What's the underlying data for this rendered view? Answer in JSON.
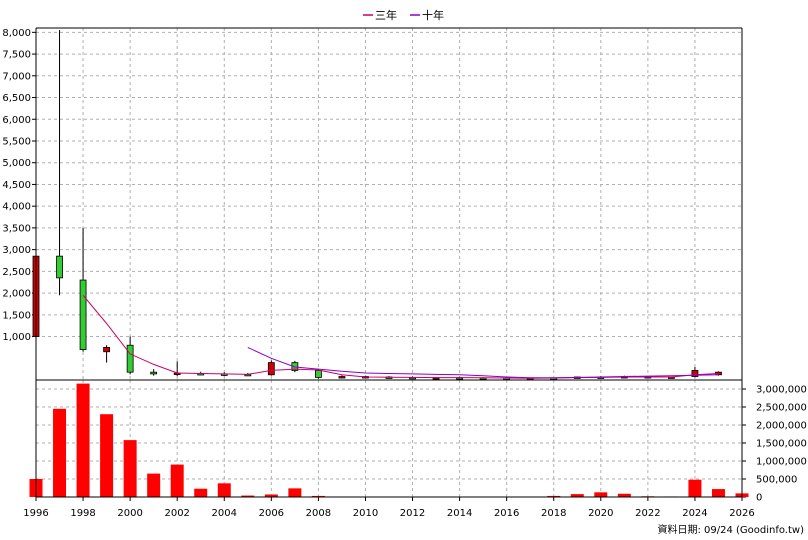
{
  "legend": [
    {
      "label": "三年",
      "color": "#cc0066"
    },
    {
      "label": "十年",
      "color": "#8800cc"
    }
  ],
  "footer": "資料日期: 09/24  (Goodinfo.tw)",
  "chart_data": [
    {
      "type": "candlestick",
      "title": "",
      "xlabel": "",
      "ylabel": "",
      "x_range": [
        1996,
        2026
      ],
      "x_ticks": [
        "1996",
        "1998",
        "2000",
        "2002",
        "2004",
        "2006",
        "2008",
        "2010",
        "2012",
        "2014",
        "2016",
        "2018",
        "2020",
        "2022",
        "2024",
        "2026"
      ],
      "y_ticks": [
        "1,000",
        "1,500",
        "2,000",
        "2,500",
        "3,000",
        "3,500",
        "4,000",
        "4,500",
        "5,000",
        "5,500",
        "6,000",
        "6,500",
        "7,000",
        "7,500",
        "8,000"
      ],
      "ylim": [
        0,
        8100
      ],
      "grid": true,
      "legend_position": "top-center",
      "up_color": "#cc0000",
      "down_color": "#33cc33",
      "candles": [
        {
          "year": 1996,
          "open": 1000,
          "high": 3050,
          "low": 800,
          "close": 2850
        },
        {
          "year": 1997,
          "open": 2850,
          "high": 8050,
          "low": 1950,
          "close": 2350
        },
        {
          "year": 1998,
          "open": 2300,
          "high": 3500,
          "low": 650,
          "close": 700
        },
        {
          "year": 1999,
          "open": 650,
          "high": 800,
          "low": 400,
          "close": 750
        },
        {
          "year": 2000,
          "open": 800,
          "high": 1000,
          "low": 130,
          "close": 180
        },
        {
          "year": 2001,
          "open": 180,
          "high": 250,
          "low": 100,
          "close": 140
        },
        {
          "year": 2002,
          "open": 140,
          "high": 430,
          "low": 90,
          "close": 160
        },
        {
          "year": 2003,
          "open": 150,
          "high": 190,
          "low": 110,
          "close": 140
        },
        {
          "year": 2004,
          "open": 140,
          "high": 180,
          "low": 90,
          "close": 130
        },
        {
          "year": 2005,
          "open": 130,
          "high": 160,
          "low": 90,
          "close": 120
        },
        {
          "year": 2006,
          "open": 120,
          "high": 450,
          "low": 100,
          "close": 400
        },
        {
          "year": 2007,
          "open": 400,
          "high": 440,
          "low": 180,
          "close": 220
        },
        {
          "year": 2008,
          "open": 220,
          "high": 260,
          "low": 30,
          "close": 60
        },
        {
          "year": 2009,
          "open": 60,
          "high": 110,
          "low": 40,
          "close": 80
        },
        {
          "year": 2010,
          "open": 80,
          "high": 100,
          "low": 60,
          "close": 70
        },
        {
          "year": 2011,
          "open": 70,
          "high": 90,
          "low": 50,
          "close": 60
        },
        {
          "year": 2012,
          "open": 60,
          "high": 80,
          "low": 40,
          "close": 50
        },
        {
          "year": 2013,
          "open": 50,
          "high": 70,
          "low": 40,
          "close": 55
        },
        {
          "year": 2014,
          "open": 55,
          "high": 75,
          "low": 40,
          "close": 50
        },
        {
          "year": 2015,
          "open": 50,
          "high": 65,
          "low": 35,
          "close": 45
        },
        {
          "year": 2016,
          "open": 45,
          "high": 60,
          "low": 30,
          "close": 40
        },
        {
          "year": 2017,
          "open": 40,
          "high": 55,
          "low": 30,
          "close": 45
        },
        {
          "year": 2018,
          "open": 45,
          "high": 60,
          "low": 30,
          "close": 40
        },
        {
          "year": 2019,
          "open": 40,
          "high": 80,
          "low": 35,
          "close": 70
        },
        {
          "year": 2020,
          "open": 70,
          "high": 90,
          "low": 40,
          "close": 60
        },
        {
          "year": 2021,
          "open": 60,
          "high": 100,
          "low": 50,
          "close": 80
        },
        {
          "year": 2022,
          "open": 80,
          "high": 90,
          "low": 50,
          "close": 60
        },
        {
          "year": 2023,
          "open": 60,
          "high": 80,
          "low": 50,
          "close": 70
        },
        {
          "year": 2024,
          "open": 80,
          "high": 300,
          "low": 60,
          "close": 220
        },
        {
          "year": 2025,
          "open": 120,
          "high": 200,
          "low": 100,
          "close": 180
        }
      ],
      "series": [
        {
          "name": "三年",
          "color": "#cc0066",
          "x": [
            1998,
            1999,
            2000,
            2001,
            2002,
            2003,
            2004,
            2005,
            2006,
            2007,
            2008,
            2009,
            2010,
            2011,
            2012,
            2013,
            2014,
            2015,
            2016,
            2017,
            2018,
            2019,
            2020,
            2021,
            2022,
            2023,
            2024,
            2025
          ],
          "values": [
            1950,
            1300,
            600,
            360,
            160,
            150,
            140,
            130,
            220,
            250,
            230,
            120,
            70,
            65,
            60,
            55,
            55,
            50,
            45,
            40,
            45,
            55,
            60,
            70,
            70,
            70,
            120,
            150
          ]
        },
        {
          "name": "十年",
          "color": "#8800cc",
          "x": [
            2005,
            2006,
            2007,
            2008,
            2009,
            2010,
            2011,
            2012,
            2013,
            2014,
            2015,
            2016,
            2017,
            2018,
            2019,
            2020,
            2021,
            2022,
            2023,
            2024,
            2025
          ],
          "values": [
            750,
            500,
            300,
            250,
            200,
            160,
            150,
            140,
            130,
            120,
            100,
            70,
            50,
            50,
            60,
            70,
            80,
            90,
            100,
            110,
            120
          ]
        }
      ]
    },
    {
      "type": "bar",
      "title": "",
      "xlabel": "",
      "ylabel": "",
      "color": "#ff0000",
      "categories": [
        1996,
        1997,
        1998,
        1999,
        2000,
        2001,
        2002,
        2003,
        2004,
        2005,
        2006,
        2007,
        2008,
        2009,
        2010,
        2011,
        2012,
        2013,
        2014,
        2015,
        2016,
        2017,
        2018,
        2019,
        2020,
        2021,
        2022,
        2023,
        2024,
        2025,
        2026
      ],
      "values": [
        500000,
        2450000,
        3150000,
        2300000,
        1580000,
        650000,
        900000,
        230000,
        380000,
        40000,
        70000,
        240000,
        30000,
        10000,
        8000,
        5000,
        5000,
        5000,
        5000,
        5000,
        5000,
        5000,
        30000,
        80000,
        130000,
        90000,
        20000,
        15000,
        480000,
        220000,
        100000
      ],
      "y_ticks": [
        "0",
        "500,000",
        "1,000,000",
        "1,500,000",
        "2,000,000",
        "2,500,000",
        "3,000,000"
      ],
      "ylim": [
        0,
        3250000
      ],
      "grid": true
    }
  ]
}
